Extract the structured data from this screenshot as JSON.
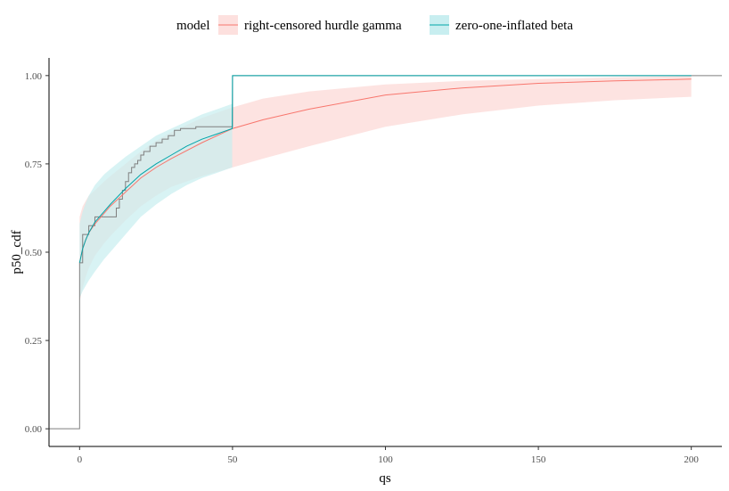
{
  "chart_data": {
    "type": "line",
    "xlabel": "qs",
    "ylabel": "p50_cdf",
    "xlim": [
      -10,
      210
    ],
    "ylim": [
      -0.05,
      1.05
    ],
    "x_ticks": [
      0,
      50,
      100,
      150,
      200
    ],
    "y_ticks": [
      0.0,
      0.25,
      0.5,
      0.75,
      1.0
    ],
    "x_tick_labels": [
      "0",
      "50",
      "100",
      "150",
      "200"
    ],
    "y_tick_labels": [
      "0.00",
      "0.25",
      "0.50",
      "0.75",
      "1.00"
    ],
    "grid": false,
    "legend": {
      "title": "model",
      "position": "top",
      "entries": [
        "right-censored hurdle gamma",
        "zero-one-inflated beta"
      ]
    },
    "series": [
      {
        "name": "right-censored hurdle gamma",
        "color": "#f8766d",
        "fill": "#fde0de",
        "x": [
          0,
          1,
          2,
          3,
          5,
          8,
          10,
          15,
          20,
          25,
          30,
          40,
          50,
          60,
          75,
          100,
          125,
          150,
          175,
          200
        ],
        "y": [
          0.47,
          0.51,
          0.535,
          0.555,
          0.58,
          0.61,
          0.63,
          0.67,
          0.71,
          0.74,
          0.765,
          0.81,
          0.85,
          0.875,
          0.905,
          0.945,
          0.965,
          0.978,
          0.985,
          0.99
        ],
        "lower": [
          0.36,
          0.4,
          0.43,
          0.455,
          0.49,
          0.525,
          0.545,
          0.59,
          0.63,
          0.66,
          0.685,
          0.715,
          0.74,
          0.765,
          0.8,
          0.855,
          0.89,
          0.915,
          0.93,
          0.94
        ],
        "upper": [
          0.6,
          0.63,
          0.645,
          0.66,
          0.675,
          0.7,
          0.715,
          0.75,
          0.785,
          0.815,
          0.84,
          0.88,
          0.91,
          0.935,
          0.955,
          0.975,
          0.985,
          0.99,
          0.995,
          0.998
        ]
      },
      {
        "name": "zero-one-inflated beta",
        "color": "#00a5a9",
        "fill": "#c8eef0",
        "x": [
          0,
          1,
          2,
          3,
          5,
          8,
          10,
          15,
          20,
          25,
          30,
          35,
          40,
          45,
          49.9
        ],
        "y": [
          0.47,
          0.51,
          0.535,
          0.555,
          0.585,
          0.615,
          0.635,
          0.68,
          0.72,
          0.75,
          0.775,
          0.8,
          0.82,
          0.835,
          0.85
        ],
        "lower": [
          0.37,
          0.39,
          0.405,
          0.42,
          0.445,
          0.48,
          0.5,
          0.55,
          0.6,
          0.635,
          0.665,
          0.69,
          0.71,
          0.725,
          0.74
        ],
        "upper": [
          0.58,
          0.615,
          0.64,
          0.66,
          0.69,
          0.72,
          0.735,
          0.77,
          0.8,
          0.83,
          0.85,
          0.87,
          0.89,
          0.905,
          0.92
        ],
        "jump": {
          "x": 50,
          "y": 1.0
        }
      }
    ],
    "empirical_cdf": {
      "color": "#7f7f7f",
      "x": [
        -10,
        0,
        0,
        1,
        1,
        3,
        3,
        5,
        5,
        12,
        12,
        13,
        13,
        14,
        14,
        15,
        15,
        16,
        16,
        17,
        17,
        18,
        18,
        19,
        19,
        20,
        20,
        21,
        21,
        23,
        23,
        25,
        25,
        27,
        27,
        29,
        29,
        31,
        31,
        33,
        33,
        38,
        38,
        50,
        50,
        210
      ],
      "y": [
        0.0,
        0.0,
        0.47,
        0.47,
        0.55,
        0.55,
        0.575,
        0.575,
        0.6,
        0.6,
        0.625,
        0.625,
        0.65,
        0.65,
        0.675,
        0.675,
        0.7,
        0.7,
        0.725,
        0.725,
        0.74,
        0.74,
        0.75,
        0.75,
        0.76,
        0.76,
        0.775,
        0.775,
        0.785,
        0.785,
        0.8,
        0.8,
        0.81,
        0.81,
        0.82,
        0.82,
        0.83,
        0.83,
        0.845,
        0.845,
        0.85,
        0.85,
        0.855,
        0.855,
        1.0,
        1.0
      ]
    }
  }
}
